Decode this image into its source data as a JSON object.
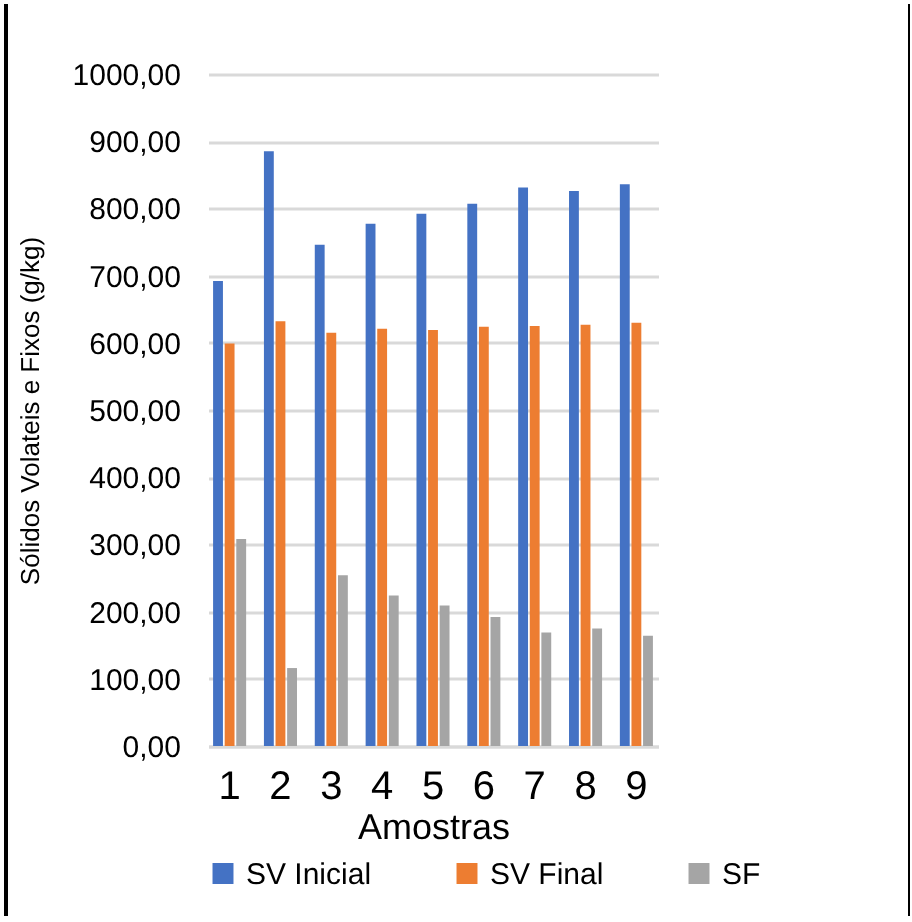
{
  "chart_data": {
    "type": "bar",
    "xlabel": "Amostras",
    "ylabel": "Sólidos Volateis e Fixos (g/kg)",
    "categories": [
      "1",
      "2",
      "3",
      "4",
      "5",
      "6",
      "7",
      "8",
      "9"
    ],
    "series": [
      {
        "name": "SV Inicial",
        "color": "#4472c4",
        "values": [
          692,
          885,
          746,
          777,
          792,
          807,
          831,
          826,
          836
        ]
      },
      {
        "name": "SV Final",
        "color": "#ed7d31",
        "values": [
          599,
          632,
          615,
          621,
          619,
          624,
          625,
          627,
          630
        ]
      },
      {
        "name": "SF",
        "color": "#a5a5a5",
        "values": [
          308,
          116,
          254,
          224,
          209,
          192,
          169,
          175,
          164
        ]
      }
    ],
    "ylim": [
      0,
      1000
    ],
    "yticks": [
      {
        "value": 0,
        "label": "0,00"
      },
      {
        "value": 100,
        "label": "100,00"
      },
      {
        "value": 200,
        "label": "200,00"
      },
      {
        "value": 300,
        "label": "300,00"
      },
      {
        "value": 400,
        "label": "400,00"
      },
      {
        "value": 500,
        "label": "500,00"
      },
      {
        "value": 600,
        "label": "600,00"
      },
      {
        "value": 700,
        "label": "700,00"
      },
      {
        "value": 800,
        "label": "800,00"
      },
      {
        "value": 900,
        "label": "900,00"
      },
      {
        "value": 1000,
        "label": "1000,00"
      }
    ],
    "grid": "y",
    "legend": "bottom"
  }
}
